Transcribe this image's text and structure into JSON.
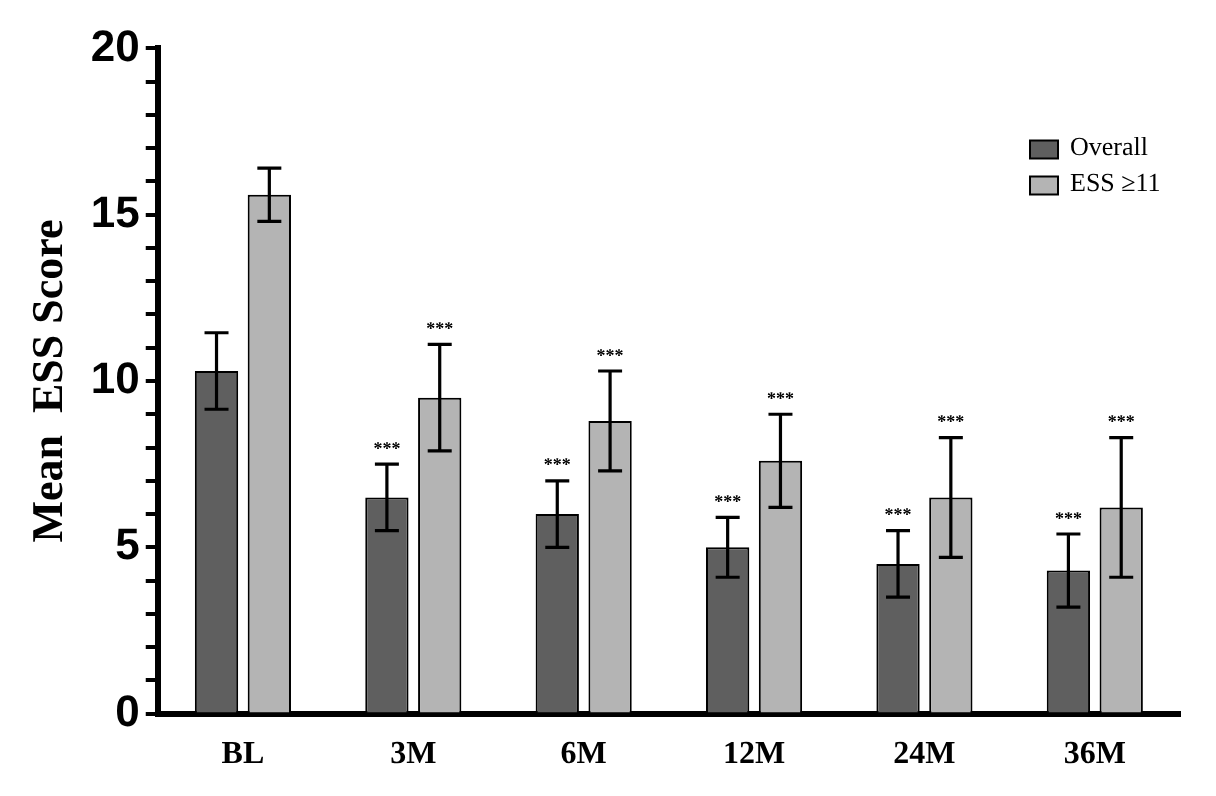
{
  "chart_data": {
    "type": "bar",
    "ylabel": "Mean  ESS Score",
    "categories": [
      "BL",
      "3M",
      "6M",
      "12M",
      "24M",
      "36M"
    ],
    "series": [
      {
        "name": "Overall",
        "color": "#5f5f5f",
        "values": [
          10.3,
          6.5,
          6.0,
          5.0,
          4.5,
          4.3
        ],
        "errors": [
          1.15,
          1.0,
          1.0,
          0.9,
          1.0,
          1.1
        ]
      },
      {
        "name": "ESS ≥11",
        "color": "#b4b4b4",
        "values": [
          15.6,
          9.5,
          8.8,
          7.6,
          6.5,
          6.2
        ],
        "errors": [
          0.8,
          1.6,
          1.5,
          1.4,
          1.8,
          2.1
        ]
      }
    ],
    "ylim": [
      0,
      20
    ],
    "yticks": [
      0,
      {
        "value": 1,
        "label": null
      },
      {
        "value": 2,
        "label": null
      },
      {
        "value": 3,
        "label": null
      },
      {
        "value": 4,
        "label": null
      },
      5,
      {
        "value": 6,
        "label": null
      },
      {
        "value": 7,
        "label": null
      },
      {
        "value": 8,
        "label": null
      },
      {
        "value": 9,
        "label": null
      },
      10,
      {
        "value": 11,
        "label": null
      },
      {
        "value": 12,
        "label": null
      },
      {
        "value": 13,
        "label": null
      },
      {
        "value": 14,
        "label": null
      },
      15,
      {
        "value": 16,
        "label": null
      },
      {
        "value": 17,
        "label": null
      },
      {
        "value": 18,
        "label": null
      },
      {
        "value": 19,
        "label": null
      },
      20
    ],
    "annotations": [
      "***",
      "***",
      "***",
      "***",
      "***",
      "***",
      "***",
      "***",
      "***",
      "***"
    ],
    "grid": false,
    "legend": "top right"
  }
}
